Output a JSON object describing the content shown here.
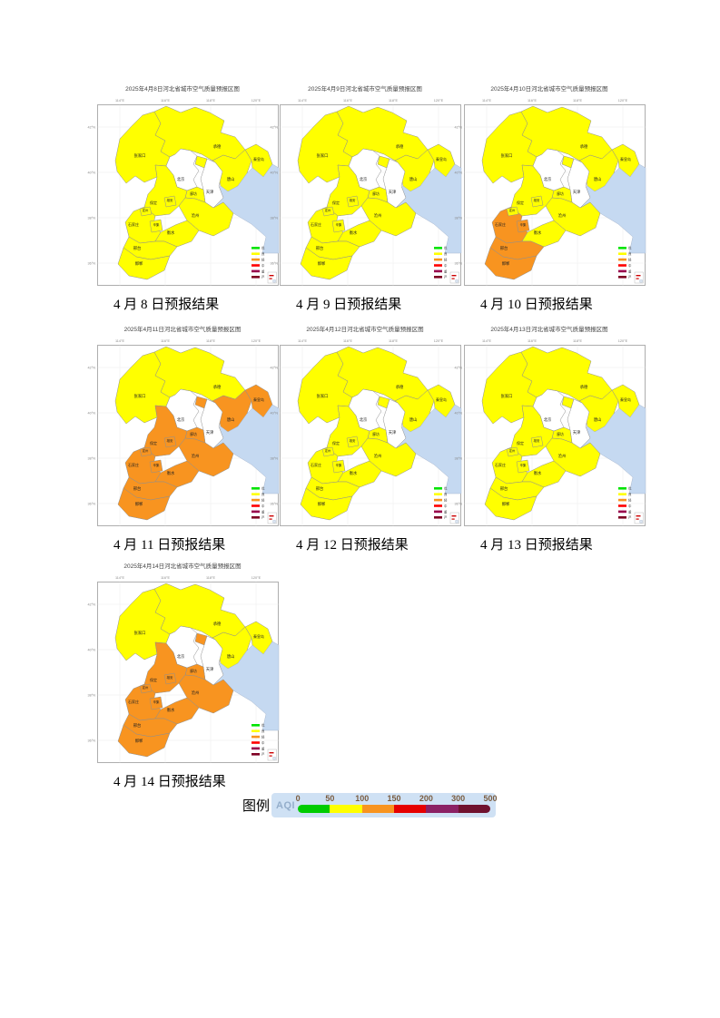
{
  "document": {
    "maps": [
      {
        "title": "2025年4月8日河北省城市空气质量预报区图",
        "caption": "4 月 8 日预报结果",
        "light_pollution_cities": []
      },
      {
        "title": "2025年4月9日河北省城市空气质量预报区图",
        "caption": "4 月 9 日预报结果",
        "light_pollution_cities": []
      },
      {
        "title": "2025年4月10日河北省城市空气质量预报区图",
        "caption": "4 月 10 日预报结果",
        "light_pollution_cities": [
          "shijiazhuang",
          "xinji",
          "xingtai",
          "handan"
        ]
      },
      {
        "title": "2025年4月11日河北省城市空气质量预报区图",
        "caption": "4 月 11 日预报结果",
        "light_pollution_cities": [
          "tangshan",
          "qinhuangdao",
          "langfang",
          "baoding",
          "xiongan",
          "dingzhou",
          "cangzhou",
          "shijiazhuang",
          "xinji",
          "hengshui",
          "xingtai",
          "handan"
        ]
      },
      {
        "title": "2025年4月12日河北省城市空气质量预报区图",
        "caption": "4 月 12 日预报结果",
        "light_pollution_cities": []
      },
      {
        "title": "2025年4月13日河北省城市空气质量预报区图",
        "caption": "4 月 13 日预报结果",
        "light_pollution_cities": []
      },
      {
        "title": "2025年4月14日河北省城市空气质量预报区图",
        "caption": "4 月 14 日预报结果",
        "light_pollution_cities": [
          "langfang",
          "baoding",
          "xiongan",
          "dingzhou",
          "cangzhou",
          "shijiazhuang",
          "xinji",
          "hengshui",
          "xingtai",
          "handan"
        ]
      }
    ],
    "cities": [
      {
        "key": "zhangjiakou",
        "label": "张家口",
        "in_province": true
      },
      {
        "key": "chengde",
        "label": "承德",
        "in_province": true
      },
      {
        "key": "qinhuangdao",
        "label": "秦皇岛",
        "in_province": true
      },
      {
        "key": "tangshan",
        "label": "唐山",
        "in_province": true
      },
      {
        "key": "langfang",
        "label": "廊坊",
        "in_province": true
      },
      {
        "key": "baoding",
        "label": "保定",
        "in_province": true
      },
      {
        "key": "xiongan",
        "label": "雄安",
        "in_province": true
      },
      {
        "key": "dingzhou",
        "label": "定州",
        "in_province": true
      },
      {
        "key": "cangzhou",
        "label": "沧州",
        "in_province": true
      },
      {
        "key": "shijiazhuang",
        "label": "石家庄",
        "in_province": true
      },
      {
        "key": "xinji",
        "label": "辛集",
        "in_province": true
      },
      {
        "key": "hengshui",
        "label": "衡水",
        "in_province": true
      },
      {
        "key": "xingtai",
        "label": "邢台",
        "in_province": true
      },
      {
        "key": "handan",
        "label": "邯郸",
        "in_province": true
      },
      {
        "key": "beijing",
        "label": "北京",
        "in_province": false
      },
      {
        "key": "tianjin",
        "label": "天津",
        "in_province": false
      }
    ],
    "aqi_levels": {
      "moderate": {
        "label": "良",
        "color": "#ffff00"
      },
      "light_pollution": {
        "label": "轻度污染",
        "color": "#f89420"
      }
    },
    "axis": {
      "lon_ticks": [
        "114°E",
        "116°E",
        "118°E",
        "120°E"
      ],
      "lat_ticks": [
        "42°N",
        "40°N",
        "38°N",
        "36°N"
      ]
    },
    "map_mini_legend": [
      {
        "label": "优",
        "color": "#00e400"
      },
      {
        "label": "良",
        "color": "#ffff00"
      },
      {
        "label": "轻",
        "color": "#f89420"
      },
      {
        "label": "中",
        "color": "#ff0000"
      },
      {
        "label": "重",
        "color": "#99004c"
      },
      {
        "label": "严",
        "color": "#7e0023"
      }
    ],
    "legend": {
      "outer_label": "图例",
      "aqi_label": "AQI",
      "ticks": [
        "0",
        "50",
        "100",
        "150",
        "200",
        "300",
        "500"
      ],
      "segments": [
        "#00cc00",
        "#ffff00",
        "#f89420",
        "#e60000",
        "#8b2164",
        "#70122f"
      ],
      "box_color": "#cfe1f4",
      "aqi_text_color": "#94aecb",
      "tick_text_color": "#7a5c40"
    },
    "colors": {
      "sea": "#c5d9f1",
      "outside": "#ffffff",
      "border": "#8f8f8f",
      "grid": "#ececec",
      "frame": "#9a9a9a"
    }
  }
}
